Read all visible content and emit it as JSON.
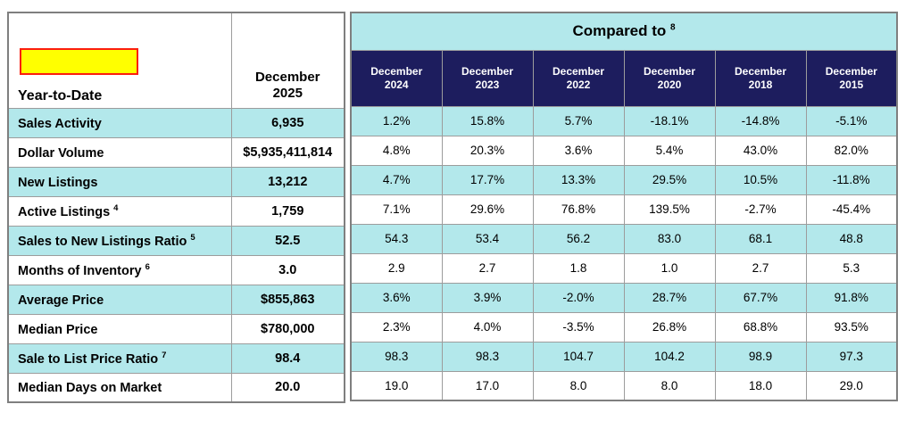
{
  "colors": {
    "row_accent_cyan": "#b3e8eb",
    "header_navy": "#1d1d5e",
    "header_text_white": "#ffffff",
    "redaction_fill_yellow": "#ffff00",
    "redaction_border_red": "#fb1e0e",
    "grid_border_gray": "#9c9c9c"
  },
  "header": {
    "left_label": "Year-to-Date",
    "current": {
      "month": "December",
      "year": "2025"
    },
    "compared_to": "Compared to",
    "compared_sup": "8",
    "columns": [
      {
        "month": "December",
        "year": "2024"
      },
      {
        "month": "December",
        "year": "2023"
      },
      {
        "month": "December",
        "year": "2022"
      },
      {
        "month": "December",
        "year": "2020"
      },
      {
        "month": "December",
        "year": "2018"
      },
      {
        "month": "December",
        "year": "2015"
      }
    ]
  },
  "rows": [
    {
      "label": "Sales Activity",
      "sup": "",
      "current": "6,935",
      "values": [
        "1.2%",
        "15.8%",
        "5.7%",
        "-18.1%",
        "-14.8%",
        "-5.1%"
      ]
    },
    {
      "label": "Dollar Volume",
      "sup": "",
      "current": "$5,935,411,814",
      "values": [
        "4.8%",
        "20.3%",
        "3.6%",
        "5.4%",
        "43.0%",
        "82.0%"
      ]
    },
    {
      "label": "New Listings",
      "sup": "",
      "current": "13,212",
      "values": [
        "4.7%",
        "17.7%",
        "13.3%",
        "29.5%",
        "10.5%",
        "-11.8%"
      ]
    },
    {
      "label": "Active Listings",
      "sup": "4",
      "current": "1,759",
      "values": [
        "7.1%",
        "29.6%",
        "76.8%",
        "139.5%",
        "-2.7%",
        "-45.4%"
      ]
    },
    {
      "label": "Sales to New Listings Ratio",
      "sup": "5",
      "current": "52.5",
      "values": [
        "54.3",
        "53.4",
        "56.2",
        "83.0",
        "68.1",
        "48.8"
      ]
    },
    {
      "label": "Months of Inventory",
      "sup": "6",
      "current": "3.0",
      "values": [
        "2.9",
        "2.7",
        "1.8",
        "1.0",
        "2.7",
        "5.3"
      ]
    },
    {
      "label": "Average Price",
      "sup": "",
      "current": "$855,863",
      "values": [
        "3.6%",
        "3.9%",
        "-2.0%",
        "28.7%",
        "67.7%",
        "91.8%"
      ]
    },
    {
      "label": "Median Price",
      "sup": "",
      "current": "$780,000",
      "values": [
        "2.3%",
        "4.0%",
        "-3.5%",
        "26.8%",
        "68.8%",
        "93.5%"
      ]
    },
    {
      "label": "Sale to List Price Ratio",
      "sup": "7",
      "current": "98.4",
      "values": [
        "98.3",
        "98.3",
        "104.7",
        "104.2",
        "98.9",
        "97.3"
      ]
    },
    {
      "label": "Median Days on Market",
      "sup": "",
      "current": "20.0",
      "values": [
        "19.0",
        "17.0",
        "8.0",
        "8.0",
        "18.0",
        "29.0"
      ]
    }
  ]
}
